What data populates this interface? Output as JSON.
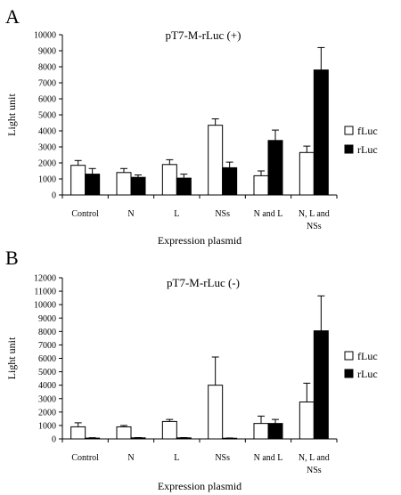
{
  "chart_data": [
    {
      "type": "bar",
      "panel_label": "A",
      "title": "pT7-M-rLuc (+)",
      "xlabel": "Expression plasmid",
      "ylabel": "Light unit",
      "ylim": [
        0,
        10000
      ],
      "ytick_step": 1000,
      "yticks": [
        "0",
        "1000",
        "2000",
        "3000",
        "4000",
        "5000",
        "6000",
        "7000",
        "8000",
        "9000",
        "10000"
      ],
      "categories": [
        [
          "Control"
        ],
        [
          "N"
        ],
        [
          "L"
        ],
        [
          "NSs"
        ],
        [
          "N and L"
        ],
        [
          "N, L and",
          "NSs"
        ]
      ],
      "series": [
        {
          "name": "fLuc",
          "color": "#ffffff",
          "values": [
            1850,
            1400,
            1900,
            4350,
            1200,
            2650
          ],
          "errors": [
            300,
            250,
            300,
            400,
            300,
            400
          ]
        },
        {
          "name": "rLuc",
          "color": "#000000",
          "values": [
            1300,
            1100,
            1050,
            1700,
            3400,
            7800
          ],
          "errors": [
            350,
            150,
            250,
            350,
            650,
            1400
          ]
        }
      ],
      "legend_position": "right",
      "grid": false
    },
    {
      "type": "bar",
      "panel_label": "B",
      "title": "pT7-M-rLuc (-)",
      "xlabel": "Expression plasmid",
      "ylabel": "Light unit",
      "ylim": [
        0,
        12000
      ],
      "ytick_step": 1000,
      "yticks": [
        "0",
        "1000",
        "2000",
        "3000",
        "4000",
        "5000",
        "6000",
        "7000",
        "8000",
        "9000",
        "10000",
        "11000",
        "12000"
      ],
      "categories": [
        [
          "Control"
        ],
        [
          "N"
        ],
        [
          "L"
        ],
        [
          "NSs"
        ],
        [
          "N and L"
        ],
        [
          "N, L and",
          "NSs"
        ]
      ],
      "series": [
        {
          "name": "fLuc",
          "color": "#ffffff",
          "values": [
            900,
            900,
            1300,
            4000,
            1150,
            2750
          ],
          "errors": [
            300,
            100,
            150,
            2100,
            550,
            1400
          ]
        },
        {
          "name": "rLuc",
          "color": "#000000",
          "values": [
            60,
            80,
            80,
            50,
            1150,
            8050
          ],
          "errors": [
            30,
            20,
            20,
            20,
            300,
            2600
          ]
        }
      ],
      "legend_position": "right",
      "grid": false
    }
  ]
}
